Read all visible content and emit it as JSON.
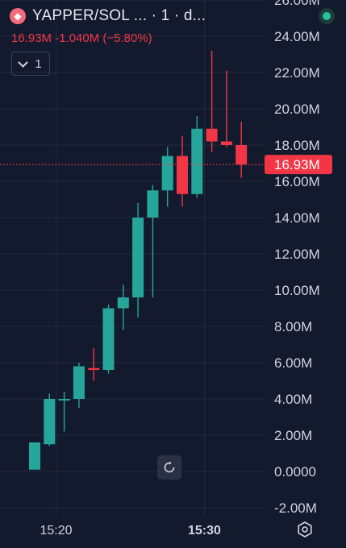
{
  "header": {
    "symbol": "YAPPER/SOL ... · 1 · d...",
    "quote": "16.93M  -1.040M (−5.80%)"
  },
  "indicator": {
    "count": "1"
  },
  "colors": {
    "up": "#26a69a",
    "down": "#f23645",
    "background": "#131a2e",
    "grid": "#23293b",
    "axis_text": "#d1d4dc"
  },
  "chart_data": {
    "type": "candlestick",
    "y_unit": "M",
    "ylim": [
      -2,
      26
    ],
    "y_ticks": [
      -2,
      0,
      2,
      4,
      6,
      8,
      10,
      12,
      14,
      16,
      18,
      20,
      22,
      24,
      26
    ],
    "y_tick_labels": [
      "-2.00M",
      "0.0000",
      "2.00M",
      "4.00M",
      "6.00M",
      "8.00M",
      "10.00M",
      "12.00M",
      "14.00M",
      "16.00M",
      "18.00M",
      "20.00M",
      "22.00M",
      "24.00M",
      "26.00M"
    ],
    "x_ticks": [
      {
        "label": "15:20",
        "index": 1.45
      },
      {
        "label": "15:30",
        "index": 11.5
      }
    ],
    "current_price": 16.93,
    "current_price_label": "16.93M",
    "candles": [
      {
        "o": 0.1,
        "h": 1.6,
        "l": 0.1,
        "c": 1.6
      },
      {
        "o": 1.5,
        "h": 4.3,
        "l": 1.4,
        "c": 4.0
      },
      {
        "o": 4.0,
        "h": 4.4,
        "l": 2.2,
        "c": 4.0
      },
      {
        "o": 4.0,
        "h": 6.0,
        "l": 3.5,
        "c": 5.8
      },
      {
        "o": 5.7,
        "h": 6.8,
        "l": 5.0,
        "c": 5.6
      },
      {
        "o": 5.6,
        "h": 9.2,
        "l": 5.4,
        "c": 9.0
      },
      {
        "o": 9.0,
        "h": 10.3,
        "l": 7.8,
        "c": 9.6
      },
      {
        "o": 9.6,
        "h": 14.8,
        "l": 8.5,
        "c": 14.0
      },
      {
        "o": 14.0,
        "h": 15.8,
        "l": 9.6,
        "c": 15.5
      },
      {
        "o": 15.5,
        "h": 17.9,
        "l": 14.6,
        "c": 17.4
      },
      {
        "o": 17.4,
        "h": 18.5,
        "l": 14.6,
        "c": 15.3
      },
      {
        "o": 15.3,
        "h": 19.6,
        "l": 15.1,
        "c": 18.9
      },
      {
        "o": 18.9,
        "h": 23.2,
        "l": 17.6,
        "c": 18.2
      },
      {
        "o": 18.2,
        "h": 22.1,
        "l": 17.9,
        "c": 18.0
      },
      {
        "o": 18.0,
        "h": 19.3,
        "l": 16.2,
        "c": 16.93
      }
    ]
  }
}
